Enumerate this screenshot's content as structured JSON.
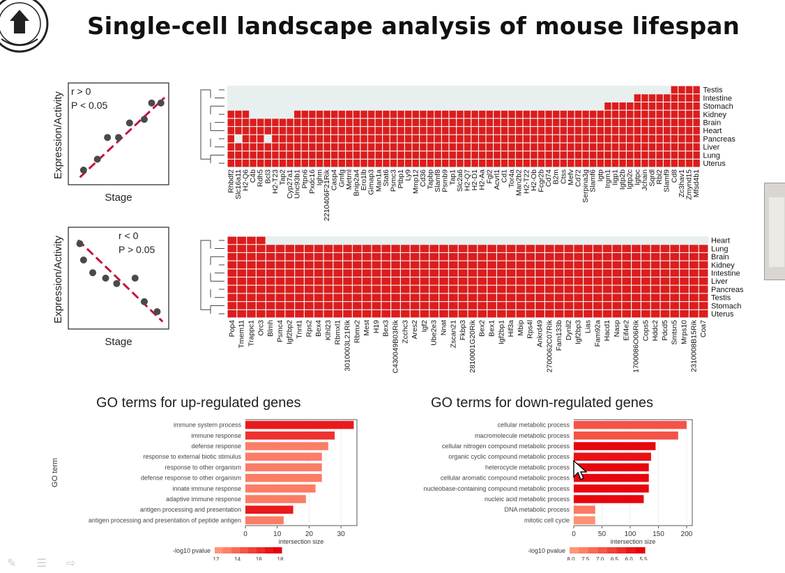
{
  "slide": {
    "title": "Single-cell landscape analysis of mouse lifespan"
  },
  "colors": {
    "heat_on": "#dd1c1c",
    "heat_off": "#e7f0ef",
    "trend_line": "#c4143c",
    "point": "#4a4a4a"
  },
  "icons": {
    "logo": "university-seal-icon",
    "cursor": "mouse-pointer-icon",
    "nav": [
      "pen-icon",
      "menu-icon",
      "arrow-right-icon"
    ]
  },
  "schematic_up": {
    "ylabel": "Expression/Activity",
    "xlabel": "Stage",
    "r_label": "r > 0",
    "p_label": "P < 0.05",
    "points": [
      [
        0.12,
        0.1
      ],
      [
        0.27,
        0.22
      ],
      [
        0.38,
        0.46
      ],
      [
        0.5,
        0.46
      ],
      [
        0.62,
        0.62
      ],
      [
        0.78,
        0.66
      ],
      [
        0.86,
        0.84
      ],
      [
        0.96,
        0.84
      ]
    ]
  },
  "schematic_down": {
    "ylabel": "Expression/Activity",
    "xlabel": "Stage",
    "r_label": "r < 0",
    "p_label": "P > 0.05",
    "points": [
      [
        0.08,
        0.88
      ],
      [
        0.12,
        0.7
      ],
      [
        0.22,
        0.56
      ],
      [
        0.36,
        0.5
      ],
      [
        0.48,
        0.44
      ],
      [
        0.68,
        0.5
      ],
      [
        0.78,
        0.24
      ],
      [
        0.92,
        0.13
      ]
    ]
  },
  "heatmap_up": {
    "tissues": [
      "Testis",
      "Intestine",
      "Stomach",
      "Kidney",
      "Brain",
      "Heart",
      "Pancreas",
      "Liver",
      "Lung",
      "Uterus"
    ],
    "genes": [
      "Rhbdf2",
      "Slc16a11",
      "H2-Q6",
      "C4b",
      "Rdh5",
      "Bcl3",
      "H2-T23",
      "Tap2",
      "Cyp27a1",
      "Unc93b1",
      "Ptpn6",
      "Pxdc16",
      "Ighm",
      "2210406F21Rik",
      "Casp4",
      "Gmfg",
      "Metrnl",
      "Bnip2a4",
      "Ero1lb",
      "Gimap3",
      "Man1a",
      "Stat6",
      "Psmc3",
      "Ptbp1",
      "Ly9",
      "Mmp12",
      "Cd36",
      "Tapbp",
      "Slamf8",
      "Psmb9",
      "Tap1",
      "Slc2a6",
      "H2-Q7",
      "H2-D1",
      "H2-Aa",
      "Fgl2",
      "Acvrl1",
      "Cd1",
      "Tor4a",
      "Man2b2",
      "H2-T22",
      "H2-Ob",
      "Fcgr2b",
      "Cd74",
      "B2m",
      "Ctss",
      "Mefv",
      "Cd72",
      "Serpina3g",
      "Slamf6",
      "Igtp",
      "Irgm1",
      "Iigp1",
      "Igtp2b",
      "Igtp2c",
      "Igtpc",
      "Jchain",
      "Sqrdl",
      "Rbl2",
      "Slamf9",
      "Cd8",
      "Zc3hav1",
      "Zmynd15",
      "Mfsd4b1"
    ],
    "grid": [
      "0000000000000000000000000000000000000000000000000000000000001111",
      "0000000000000000000000000000000000000000000000000000000111111111",
      "0000000000000000000000000000000000000000000000000001111111111111",
      "1110000001111111111111111111111111111111111111111111111111111111",
      "1111111111111111111111111111111111111111111111111111111111111111",
      "1111111111111111111111111111111111111111111111111111111111111111",
      "1011101111111111111111111111111111111111111111111111111111111111",
      "1111111111111111111111111111111111111111111111111111111111111111",
      "1111111111111111111111111111111111111111111111111111111111111111",
      "1111111111111111111111111111111111111111111111111111111111111111"
    ]
  },
  "heatmap_down": {
    "tissues": [
      "Heart",
      "Lung",
      "Brain",
      "Kidney",
      "Intestine",
      "Liver",
      "Pancreas",
      "Testis",
      "Stomach",
      "Uterus"
    ],
    "genes": [
      "Pop4",
      "Tmem11",
      "Trappc1",
      "Orc3",
      "Blmh",
      "Psmc4",
      "Igf2bp2",
      "Tnnt1",
      "Rps2",
      "Bex4",
      "Klhl23",
      "Rbmxl1",
      "3010003L21Rik",
      "Rbmx2",
      "Mest",
      "H19",
      "Bex3",
      "C430049B03Rik",
      "Zcchc3",
      "Ares2",
      "Igf2",
      "Ube2e3",
      "Nnat",
      "Zscan21",
      "Fkbp3",
      "2810001G20Rik",
      "Bex2",
      "Bex1",
      "Igf2bp1",
      "Hif3a",
      "Mbip",
      "Rps4l",
      "Ankrd49",
      "2700062C07Rik",
      "Fam133b",
      "Dynll2",
      "Igf2bp3",
      "Lias",
      "Fam92a",
      "Hacd1",
      "Nasp",
      "Eif4e2",
      "1700086O06Rik",
      "Cops5",
      "Hddc2",
      "Pdcd5",
      "Smtsn5",
      "Mrps10",
      "2310008B15Rik",
      "Coa7"
    ],
    "grid": [
      "11110000000000000000000000000000000000000000000000",
      "11111111111111111111111111111111111111111111111111",
      "11111111111111111111111111111111111111111111111111",
      "11111111111111111111111111111111111111111111111111",
      "11111111111111111111111111111111111111111111111111",
      "11111111111111111111111111111111111111111111111111",
      "11111111111111111111111111111111111111111111111111",
      "11111111111111111111111111111111111111111111111111",
      "11111111111111111111111111111111111111111111111111",
      "11111111111111111111111111111111111111111111111111"
    ]
  },
  "chart_data": [
    {
      "type": "bar",
      "orientation": "horizontal",
      "title": "GO terms for up-regulated genes",
      "xlabel": "intersection size",
      "ylabel": "GO term",
      "xlim": [
        0,
        35
      ],
      "xticks": [
        0,
        10,
        20,
        30
      ],
      "categories": [
        "immune system process",
        "immune response",
        "defense response",
        "response to external biotic stimulus",
        "response to other organism",
        "defense response to other organism",
        "innate immune response",
        "adaptive immune response",
        "antigen processing and presentation",
        "antigen processing and presentation of peptide antigen"
      ],
      "values": [
        34,
        28,
        26,
        24,
        24,
        24,
        22,
        19,
        15,
        12
      ],
      "neg_log10_pvalue": [
        17,
        16,
        13,
        13,
        13,
        13,
        13,
        13,
        17,
        13
      ],
      "colorbar": {
        "label": "-log10 pvalue",
        "ticks": [
          "12",
          "14",
          "16",
          "18"
        ],
        "min": 12,
        "max": 18,
        "reversed": false
      }
    },
    {
      "type": "bar",
      "orientation": "horizontal",
      "title": "GO terms for down-regulated genes",
      "xlabel": "intersection size",
      "ylabel": "",
      "xlim": [
        0,
        210
      ],
      "xticks": [
        0,
        50,
        100,
        150,
        200
      ],
      "categories": [
        "cellular metabolic process",
        "macromolecule metabolic process",
        "cellular nitrogen compound metabolic process",
        "organic cyclic compound metabolic process",
        "heterocycle metabolic process",
        "cellular aromatic compound metabolic process",
        "nucleobase-containing compound metabolic process",
        "nucleic acid metabolic process",
        "DNA metabolic process",
        "mitotic cell cycle"
      ],
      "values": [
        200,
        185,
        145,
        137,
        133,
        133,
        133,
        124,
        38,
        38
      ],
      "neg_log10_pvalue": [
        6.8,
        6.8,
        5.4,
        5.6,
        5.4,
        5.4,
        5.4,
        5.4,
        7.5,
        7.9
      ],
      "colorbar": {
        "label": "-log10 pvalue",
        "ticks": [
          "8.0",
          "7.5",
          "7.0",
          "6.5",
          "6.0",
          "5.5"
        ],
        "min": 5.3,
        "max": 8.0,
        "reversed": true
      }
    }
  ]
}
